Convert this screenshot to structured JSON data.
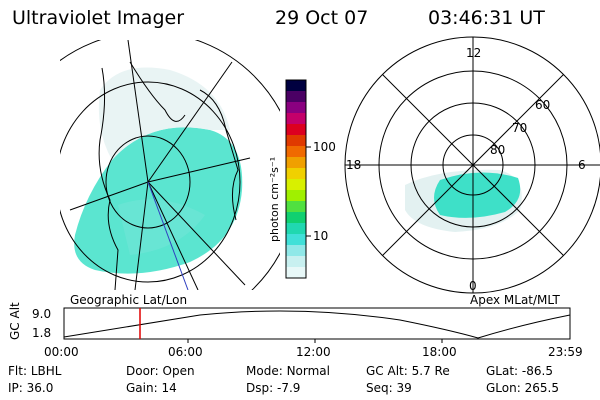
{
  "header": {
    "instrument": "Ultraviolet Imager",
    "date": "29 Oct 07",
    "time": "03:46:31 UT"
  },
  "colorbar": {
    "unit_label": "photon cm⁻²s⁻¹",
    "ticks": [
      "100",
      "10"
    ],
    "colors": [
      "#000040",
      "#4a0064",
      "#8a0080",
      "#c4006a",
      "#dc0020",
      "#e03a00",
      "#f06a00",
      "#f0a000",
      "#f0d000",
      "#d8f000",
      "#a0f000",
      "#50e040",
      "#10d070",
      "#20d8b0",
      "#40e0d8",
      "#90e8e8",
      "#c8f0f0",
      "#e8f8f8"
    ]
  },
  "left_panel": {
    "label": "Geographic Lat/Lon"
  },
  "right_panel": {
    "label": "Apex MLat/MLT",
    "mlt_labels": {
      "top": "12",
      "left": "18",
      "right": "6",
      "bottom": "0"
    },
    "lat_labels": [
      "60",
      "70",
      "80"
    ]
  },
  "altitude_strip": {
    "ylabel": "GC Alt",
    "yticks": [
      "9.0",
      "1.8"
    ],
    "xticks": [
      "00:00",
      "06:00",
      "12:00",
      "18:00",
      "23:59"
    ]
  },
  "status": {
    "row1": [
      {
        "label": "Flt:",
        "value": "LBHL"
      },
      {
        "label": "Door:",
        "value": "Open"
      },
      {
        "label": "Mode:",
        "value": "Normal"
      },
      {
        "label": "GC Alt:",
        "value": "5.7 Re"
      },
      {
        "label": "GLat:",
        "value": "-86.5"
      }
    ],
    "row2": [
      {
        "label": "IP:",
        "value": "36.0"
      },
      {
        "label": "Gain:",
        "value": "14"
      },
      {
        "label": "Dsp:",
        "value": "-7.9"
      },
      {
        "label": "Seq:",
        "value": "39"
      },
      {
        "label": "GLon:",
        "value": "265.5"
      }
    ]
  }
}
